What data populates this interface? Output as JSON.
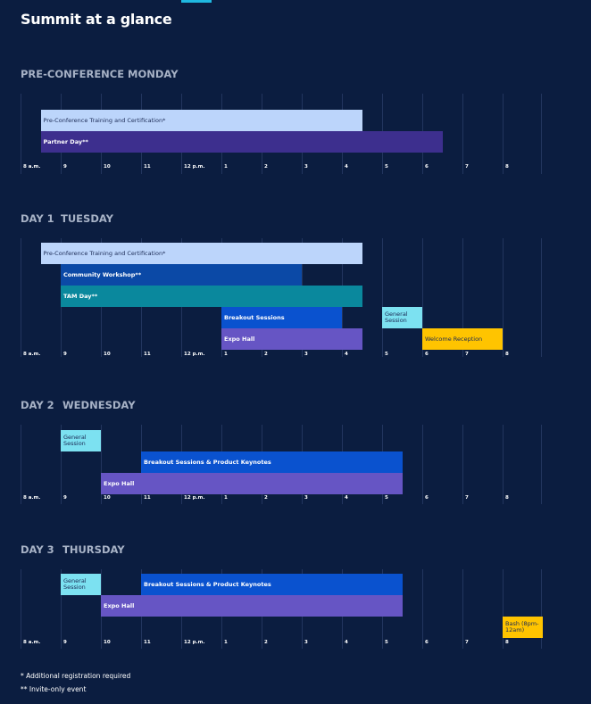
{
  "title": "Summit at a glance",
  "hours": [
    {
      "value": 8,
      "label": "8 a.m."
    },
    9,
    10,
    11,
    {
      "value": 12,
      "label": "12 p.m."
    },
    {
      "value": 13,
      "label": "1"
    },
    {
      "value": 14,
      "label": "2"
    },
    {
      "value": 15,
      "label": "3"
    },
    {
      "value": 16,
      "label": "4"
    },
    {
      "value": 17,
      "label": "5"
    },
    {
      "value": 18,
      "label": "6"
    },
    {
      "value": 19,
      "label": "7"
    },
    {
      "value": 20,
      "label": "8"
    }
  ],
  "days": [
    {
      "label": "PRE-CONFERENCE",
      "weekday": "MONDAY",
      "sessions": [
        {
          "label": "Pre-Conference Training and Certification*",
          "start": 8.5,
          "end": 16.5,
          "color": "#bcd5fb"
        },
        {
          "label": "Partner Day**",
          "start": 8.5,
          "end": 18.5,
          "color": "#3d2f8e"
        }
      ]
    },
    {
      "label": "DAY 1",
      "weekday": "TUESDAY",
      "sessions": [
        {
          "label": "Pre-Conference Training and Certification*",
          "start": 8.5,
          "end": 16.5,
          "color": "#bcd5fb"
        },
        {
          "label": "Community Workshop**",
          "start": 9,
          "end": 15,
          "color": "#0b49a6"
        },
        {
          "label": "TAM Day**",
          "start": 9,
          "end": 16.5,
          "color": "#0a889d"
        },
        {
          "label": "Breakout Sessions",
          "start": 13,
          "end": 16,
          "color": "#0a52cf"
        },
        {
          "label": "General Session",
          "start": 17,
          "end": 18,
          "color": "#7ce1f1"
        },
        {
          "label": "Expo Hall",
          "start": 13,
          "end": 16.5,
          "color": "#6655c4"
        },
        {
          "label": "Welcome Reception",
          "start": 18,
          "end": 20,
          "color": "#ffc400"
        }
      ]
    },
    {
      "label": "DAY 2",
      "weekday": "WEDNESDAY",
      "sessions": [
        {
          "label": "General Session",
          "start": 9,
          "end": 10,
          "color": "#7ce1f1"
        },
        {
          "label": "Breakout Sessions & Product Keynotes",
          "start": 11,
          "end": 17.5,
          "color": "#0a52cf"
        },
        {
          "label": "Expo Hall",
          "start": 10,
          "end": 17.5,
          "color": "#6655c4"
        }
      ]
    },
    {
      "label": "DAY 3",
      "weekday": "THURSDAY",
      "sessions": [
        {
          "label": "General Session",
          "start": 9,
          "end": 10,
          "color": "#7ce1f1"
        },
        {
          "label": "Breakout Sessions & Product Keynotes",
          "start": 11,
          "end": 17.5,
          "color": "#0a52cf"
        },
        {
          "label": "Expo Hall",
          "start": 10,
          "end": 17.5,
          "color": "#6655c4"
        },
        {
          "label": "Bash (8pm-12am)",
          "start": 20,
          "end": 21,
          "color": "#ffc400"
        }
      ]
    }
  ],
  "footnotes": [
    "* Additional registration required",
    "** Invite-only event"
  ]
}
